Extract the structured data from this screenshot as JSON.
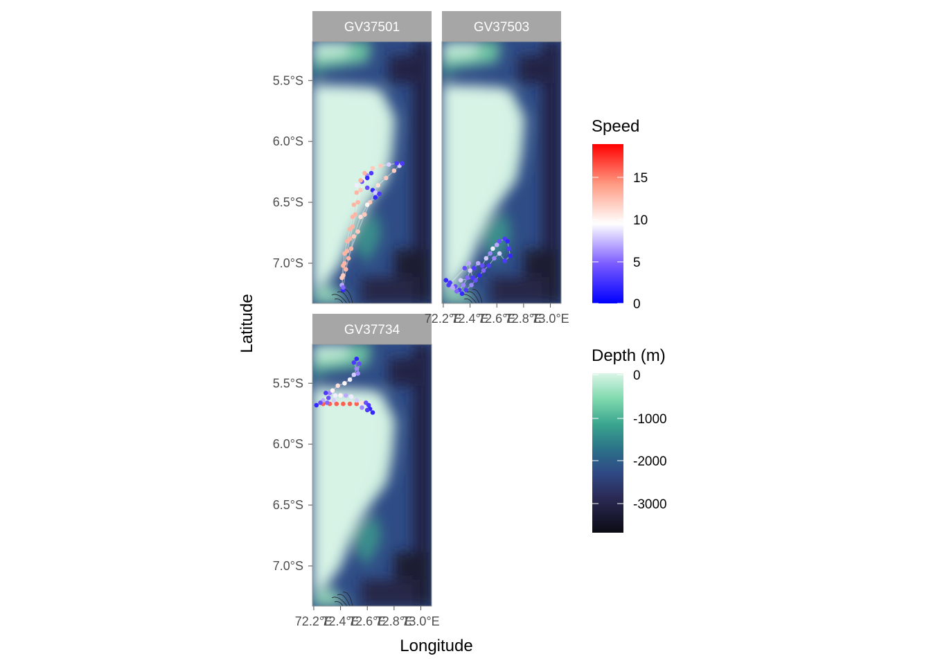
{
  "axes": {
    "xlabel": "Longitude",
    "ylabel": "Latitude",
    "x_ticks": [
      "72.2°E",
      "72.4°E",
      "72.6°E",
      "72.8°E",
      "73.0°E"
    ],
    "y_ticks": [
      "5.5°S",
      "6.0°S",
      "6.5°S",
      "7.0°S"
    ]
  },
  "panels": [
    {
      "id": "GV37501",
      "label": "GV37501"
    },
    {
      "id": "GV37503",
      "label": "GV37503"
    },
    {
      "id": "GV37734",
      "label": "GV37734"
    }
  ],
  "legends": {
    "speed": {
      "title": "Speed",
      "ticks": [
        "15",
        "10",
        "5",
        "0"
      ],
      "colors": [
        "#0000ff",
        "#ffffff",
        "#ff0000"
      ]
    },
    "depth": {
      "title": "Depth (m)",
      "ticks": [
        "0",
        "-1000",
        "-2000",
        "-3000"
      ],
      "colors": [
        "#d9f5e6",
        "#4fbf8f",
        "#2a7d8a",
        "#2f4f8c",
        "#2a2a55",
        "#0b0b14"
      ]
    }
  },
  "colors": {
    "strip_background": "#a6a6a6",
    "panel_border": "#999999",
    "shallow": "#d0f2e2",
    "deep": "#1d1a33"
  },
  "chart_data": {
    "type": "scatter",
    "title": "",
    "xlabel": "Longitude",
    "ylabel": "Latitude",
    "xlim": [
      72.19,
      73.08
    ],
    "ylim": [
      -7.33,
      -5.18
    ],
    "color_variable": "Speed",
    "color_range": [
      0,
      19
    ],
    "fill_variable": "Depth (m)",
    "fill_range": [
      -3700,
      0
    ],
    "series": [
      {
        "name": "GV37501",
        "points": [
          [
            72.42,
            -7.22,
            2
          ],
          [
            72.41,
            -7.18,
            7
          ],
          [
            72.42,
            -7.1,
            12
          ],
          [
            72.43,
            -7.0,
            13
          ],
          [
            72.45,
            -6.9,
            13
          ],
          [
            72.47,
            -6.8,
            13
          ],
          [
            72.49,
            -6.7,
            13
          ],
          [
            72.51,
            -6.6,
            13
          ],
          [
            72.53,
            -6.5,
            13
          ],
          [
            72.55,
            -6.4,
            12
          ],
          [
            72.57,
            -6.32,
            10
          ],
          [
            72.6,
            -6.28,
            6
          ],
          [
            72.63,
            -6.26,
            3
          ],
          [
            72.6,
            -6.3,
            2
          ],
          [
            72.56,
            -6.33,
            4
          ],
          [
            72.52,
            -6.36,
            9
          ],
          [
            72.6,
            -6.38,
            4
          ],
          [
            72.64,
            -6.4,
            2
          ],
          [
            72.68,
            -6.36,
            11
          ],
          [
            72.74,
            -6.3,
            12
          ],
          [
            72.8,
            -6.24,
            12
          ],
          [
            72.84,
            -6.2,
            8
          ],
          [
            72.86,
            -6.18,
            3
          ],
          [
            72.82,
            -6.18,
            3
          ],
          [
            72.76,
            -6.19,
            8
          ],
          [
            72.7,
            -6.2,
            12
          ],
          [
            72.64,
            -6.22,
            12
          ],
          [
            72.58,
            -6.26,
            13
          ],
          [
            72.55,
            -6.32,
            13
          ],
          [
            72.52,
            -6.42,
            13
          ],
          [
            72.5,
            -6.52,
            13
          ],
          [
            72.49,
            -6.62,
            13
          ],
          [
            72.47,
            -6.72,
            13
          ],
          [
            72.45,
            -6.82,
            13
          ],
          [
            72.43,
            -6.92,
            13
          ],
          [
            72.42,
            -7.02,
            13
          ],
          [
            72.41,
            -7.12,
            12
          ],
          [
            72.42,
            -7.2,
            5
          ],
          [
            72.44,
            -7.05,
            13
          ],
          [
            72.48,
            -6.88,
            13
          ],
          [
            72.53,
            -6.74,
            12
          ],
          [
            72.58,
            -6.6,
            12
          ],
          [
            72.62,
            -6.5,
            12
          ],
          [
            72.66,
            -6.42,
            8
          ],
          [
            72.69,
            -6.43,
            3
          ],
          [
            72.66,
            -6.46,
            2
          ],
          [
            72.6,
            -6.52,
            10
          ],
          [
            72.55,
            -6.62,
            11
          ],
          [
            72.5,
            -6.78,
            12
          ],
          [
            72.46,
            -6.96,
            13
          ]
        ]
      },
      {
        "name": "GV37503",
        "points": [
          [
            72.22,
            -7.14,
            2
          ],
          [
            72.25,
            -7.16,
            3
          ],
          [
            72.29,
            -7.19,
            4
          ],
          [
            72.32,
            -7.22,
            3
          ],
          [
            72.35,
            -7.18,
            6
          ],
          [
            72.38,
            -7.12,
            5
          ],
          [
            72.4,
            -7.06,
            8
          ],
          [
            72.43,
            -7.04,
            3
          ],
          [
            72.46,
            -7.0,
            7
          ],
          [
            72.49,
            -7.02,
            4
          ],
          [
            72.52,
            -6.96,
            8
          ],
          [
            72.55,
            -6.92,
            6
          ],
          [
            72.57,
            -6.88,
            9
          ],
          [
            72.6,
            -6.85,
            7
          ],
          [
            72.62,
            -6.82,
            4
          ],
          [
            72.66,
            -6.8,
            3
          ],
          [
            72.68,
            -6.82,
            2
          ],
          [
            72.69,
            -6.88,
            3
          ],
          [
            72.7,
            -6.94,
            2
          ],
          [
            72.66,
            -6.98,
            3
          ],
          [
            72.62,
            -6.92,
            8
          ],
          [
            72.58,
            -6.96,
            6
          ],
          [
            72.54,
            -7.02,
            3
          ],
          [
            72.5,
            -7.06,
            5
          ],
          [
            72.47,
            -7.1,
            2
          ],
          [
            72.44,
            -7.14,
            4
          ],
          [
            72.41,
            -7.18,
            6
          ],
          [
            72.37,
            -7.22,
            3
          ],
          [
            72.34,
            -7.25,
            2
          ],
          [
            72.3,
            -7.23,
            5
          ],
          [
            72.27,
            -7.2,
            7
          ],
          [
            72.24,
            -7.18,
            3
          ],
          [
            72.36,
            -7.04,
            4
          ],
          [
            72.39,
            -7.0,
            7
          ],
          [
            72.42,
            -7.12,
            3
          ],
          [
            72.33,
            -7.14,
            8
          ]
        ]
      },
      {
        "name": "GV37734",
        "points": [
          [
            72.22,
            -5.68,
            2
          ],
          [
            72.27,
            -5.67,
            16
          ],
          [
            72.32,
            -5.67,
            16
          ],
          [
            72.37,
            -5.67,
            16
          ],
          [
            72.42,
            -5.67,
            16
          ],
          [
            72.47,
            -5.67,
            16
          ],
          [
            72.52,
            -5.67,
            16
          ],
          [
            72.56,
            -5.66,
            11
          ],
          [
            72.59,
            -5.66,
            4
          ],
          [
            72.61,
            -5.68,
            3
          ],
          [
            72.62,
            -5.71,
            2
          ],
          [
            72.64,
            -5.74,
            2
          ],
          [
            72.6,
            -5.72,
            3
          ],
          [
            72.56,
            -5.7,
            6
          ],
          [
            72.52,
            -5.64,
            8
          ],
          [
            72.48,
            -5.61,
            9
          ],
          [
            72.44,
            -5.6,
            7
          ],
          [
            72.4,
            -5.6,
            10
          ],
          [
            72.36,
            -5.6,
            9
          ],
          [
            72.32,
            -5.58,
            6
          ],
          [
            72.29,
            -5.58,
            3
          ],
          [
            72.31,
            -5.62,
            4
          ],
          [
            72.35,
            -5.64,
            8
          ],
          [
            72.3,
            -5.66,
            5
          ],
          [
            72.27,
            -5.64,
            7
          ],
          [
            72.25,
            -5.66,
            4
          ],
          [
            72.34,
            -5.56,
            10
          ],
          [
            72.38,
            -5.52,
            11
          ],
          [
            72.43,
            -5.5,
            10
          ],
          [
            72.47,
            -5.47,
            9
          ],
          [
            72.5,
            -5.43,
            8
          ],
          [
            72.52,
            -5.38,
            6
          ],
          [
            72.5,
            -5.33,
            3
          ],
          [
            72.52,
            -5.3,
            2
          ],
          [
            72.54,
            -5.34,
            4
          ],
          [
            72.53,
            -5.42,
            6
          ]
        ]
      }
    ]
  }
}
